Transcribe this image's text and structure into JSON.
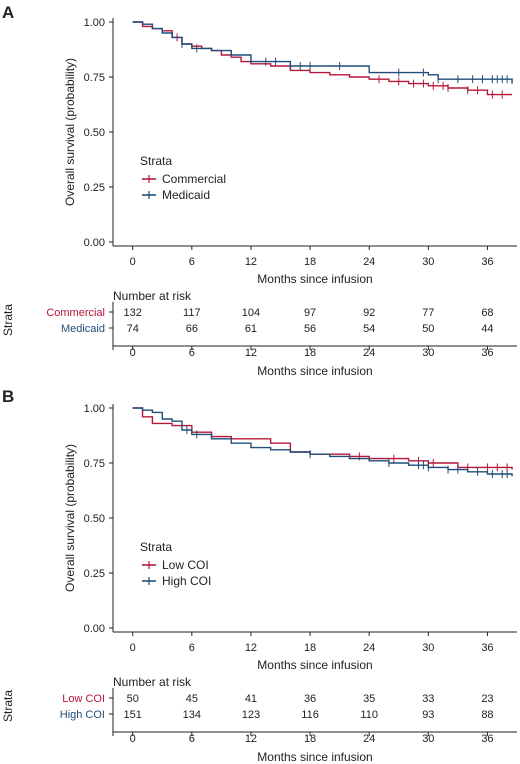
{
  "colors": {
    "commercial": "#b5173a",
    "medicaid": "#1f4e79",
    "axis": "#222222"
  },
  "chart_data": [
    {
      "panel_label": "A",
      "type": "line",
      "xlabel": "Months since infusion",
      "ylabel": "Overall survival (probability)",
      "xlim": [
        -2,
        39
      ],
      "ylim": [
        0,
        1
      ],
      "xticks": [
        "0",
        "6",
        "12",
        "18",
        "24",
        "30",
        "36"
      ],
      "yticks": [
        "0.00",
        "0.25",
        "0.50",
        "0.75",
        "1.00"
      ],
      "legend": {
        "title": "Strata",
        "position": "middle-left"
      },
      "series": [
        {
          "name": "Commercial",
          "points": [
            [
              0,
              1.0
            ],
            [
              1,
              0.98
            ],
            [
              2,
              0.97
            ],
            [
              3,
              0.96
            ],
            [
              4,
              0.93
            ],
            [
              5,
              0.9
            ],
            [
              6,
              0.89
            ],
            [
              7,
              0.88
            ],
            [
              8,
              0.87
            ],
            [
              9,
              0.85
            ],
            [
              10,
              0.84
            ],
            [
              11,
              0.82
            ],
            [
              12,
              0.81
            ],
            [
              14,
              0.8
            ],
            [
              16,
              0.78
            ],
            [
              18,
              0.77
            ],
            [
              20,
              0.76
            ],
            [
              22,
              0.75
            ],
            [
              24,
              0.74
            ],
            [
              26,
              0.73
            ],
            [
              28,
              0.72
            ],
            [
              30,
              0.71
            ],
            [
              32,
              0.7
            ],
            [
              34,
              0.69
            ],
            [
              36,
              0.67
            ],
            [
              38.5,
              0.67
            ]
          ],
          "censor": [
            4.5,
            25,
            27,
            28.5,
            29.5,
            30.5,
            31.5,
            32,
            34,
            35,
            36.5,
            37.5
          ]
        },
        {
          "name": "Medicaid",
          "points": [
            [
              0,
              1.0
            ],
            [
              1,
              0.99
            ],
            [
              2,
              0.97
            ],
            [
              3,
              0.95
            ],
            [
              4,
              0.93
            ],
            [
              5,
              0.9
            ],
            [
              6,
              0.88
            ],
            [
              8,
              0.87
            ],
            [
              10,
              0.85
            ],
            [
              12,
              0.82
            ],
            [
              16,
              0.8
            ],
            [
              24,
              0.77
            ],
            [
              28,
              0.77
            ],
            [
              30,
              0.76
            ],
            [
              31,
              0.74
            ],
            [
              38.5,
              0.72
            ]
          ],
          "censor": [
            5,
            6.5,
            13.5,
            14.5,
            16,
            17,
            18,
            21,
            27,
            29.5,
            31,
            33,
            34.5,
            35.5,
            36.5,
            37,
            37.5,
            38
          ]
        }
      ],
      "risk_table": {
        "title": "Number at risk",
        "axis_label": "Strata",
        "rows": [
          {
            "name": "Commercial",
            "values": [
              "132",
              "117",
              "104",
              "97",
              "92",
              "77",
              "68"
            ]
          },
          {
            "name": "Medicaid",
            "values": [
              "74",
              "66",
              "61",
              "56",
              "54",
              "50",
              "44"
            ]
          }
        ]
      }
    },
    {
      "panel_label": "B",
      "type": "line",
      "xlabel": "Months since infusion",
      "ylabel": "Overall survival (probability)",
      "xlim": [
        -2,
        39
      ],
      "ylim": [
        0,
        1
      ],
      "xticks": [
        "0",
        "6",
        "12",
        "18",
        "24",
        "30",
        "36"
      ],
      "yticks": [
        "0.00",
        "0.25",
        "0.50",
        "0.75",
        "1.00"
      ],
      "legend": {
        "title": "Strata",
        "position": "middle-left"
      },
      "series": [
        {
          "name": "Low COI",
          "points": [
            [
              0,
              1.0
            ],
            [
              1,
              0.96
            ],
            [
              2,
              0.93
            ],
            [
              4,
              0.92
            ],
            [
              6,
              0.89
            ],
            [
              8,
              0.87
            ],
            [
              10,
              0.86
            ],
            [
              14,
              0.84
            ],
            [
              16,
              0.8
            ],
            [
              18,
              0.79
            ],
            [
              20,
              0.79
            ],
            [
              22,
              0.78
            ],
            [
              24,
              0.77
            ],
            [
              28,
              0.76
            ],
            [
              30,
              0.75
            ],
            [
              33,
              0.73
            ],
            [
              38.5,
              0.72
            ]
          ],
          "censor": [
            23,
            26.5,
            29,
            30.5,
            34,
            36,
            37,
            38
          ]
        },
        {
          "name": "High COI",
          "points": [
            [
              0,
              1.0
            ],
            [
              1,
              0.99
            ],
            [
              2,
              0.98
            ],
            [
              3,
              0.95
            ],
            [
              4,
              0.94
            ],
            [
              5,
              0.9
            ],
            [
              6,
              0.88
            ],
            [
              8,
              0.86
            ],
            [
              10,
              0.84
            ],
            [
              12,
              0.82
            ],
            [
              14,
              0.81
            ],
            [
              16,
              0.8
            ],
            [
              18,
              0.79
            ],
            [
              20,
              0.78
            ],
            [
              22,
              0.77
            ],
            [
              24,
              0.76
            ],
            [
              26,
              0.75
            ],
            [
              28,
              0.74
            ],
            [
              30,
              0.73
            ],
            [
              32,
              0.72
            ],
            [
              34,
              0.71
            ],
            [
              36,
              0.7
            ],
            [
              38.5,
              0.69
            ]
          ],
          "censor": [
            5.5,
            6.5,
            18,
            26,
            29,
            29.5,
            30,
            32,
            33,
            35,
            36.5,
            37.5,
            38
          ]
        }
      ],
      "risk_table": {
        "title": "Number at risk",
        "axis_label": "Strata",
        "rows": [
          {
            "name": "Low COI",
            "values": [
              "50",
              "45",
              "41",
              "36",
              "35",
              "33",
              "23"
            ]
          },
          {
            "name": "High COI",
            "values": [
              "151",
              "134",
              "123",
              "116",
              "110",
              "93",
              "88"
            ]
          }
        ]
      }
    }
  ]
}
